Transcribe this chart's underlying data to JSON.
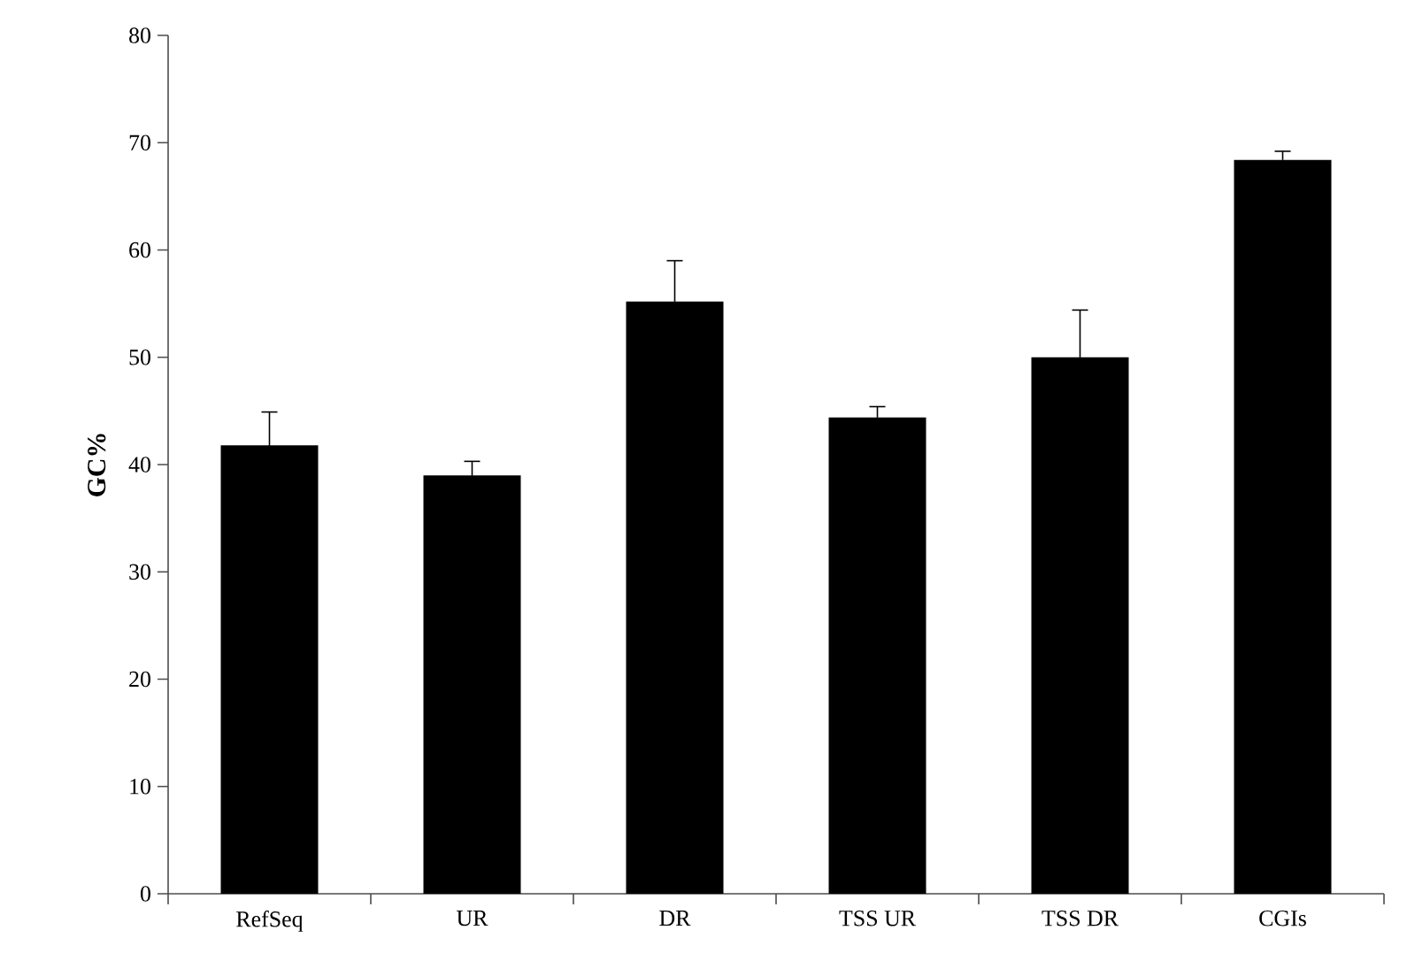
{
  "chart_data": {
    "type": "bar",
    "ylabel": "GC%",
    "categories": [
      "RefSeq",
      "UR",
      "DR",
      "TSS UR",
      "TSS DR",
      "CGIs"
    ],
    "values": [
      41.8,
      39,
      55.2,
      44.4,
      50,
      68.4
    ],
    "errors": [
      3.1,
      1.3,
      3.8,
      1.0,
      4.4,
      0.8
    ],
    "color": "#000000",
    "ylim": [
      0,
      80
    ],
    "yticks": [
      0,
      10,
      20,
      30,
      40,
      50,
      60,
      70,
      80
    ],
    "grid": false
  }
}
